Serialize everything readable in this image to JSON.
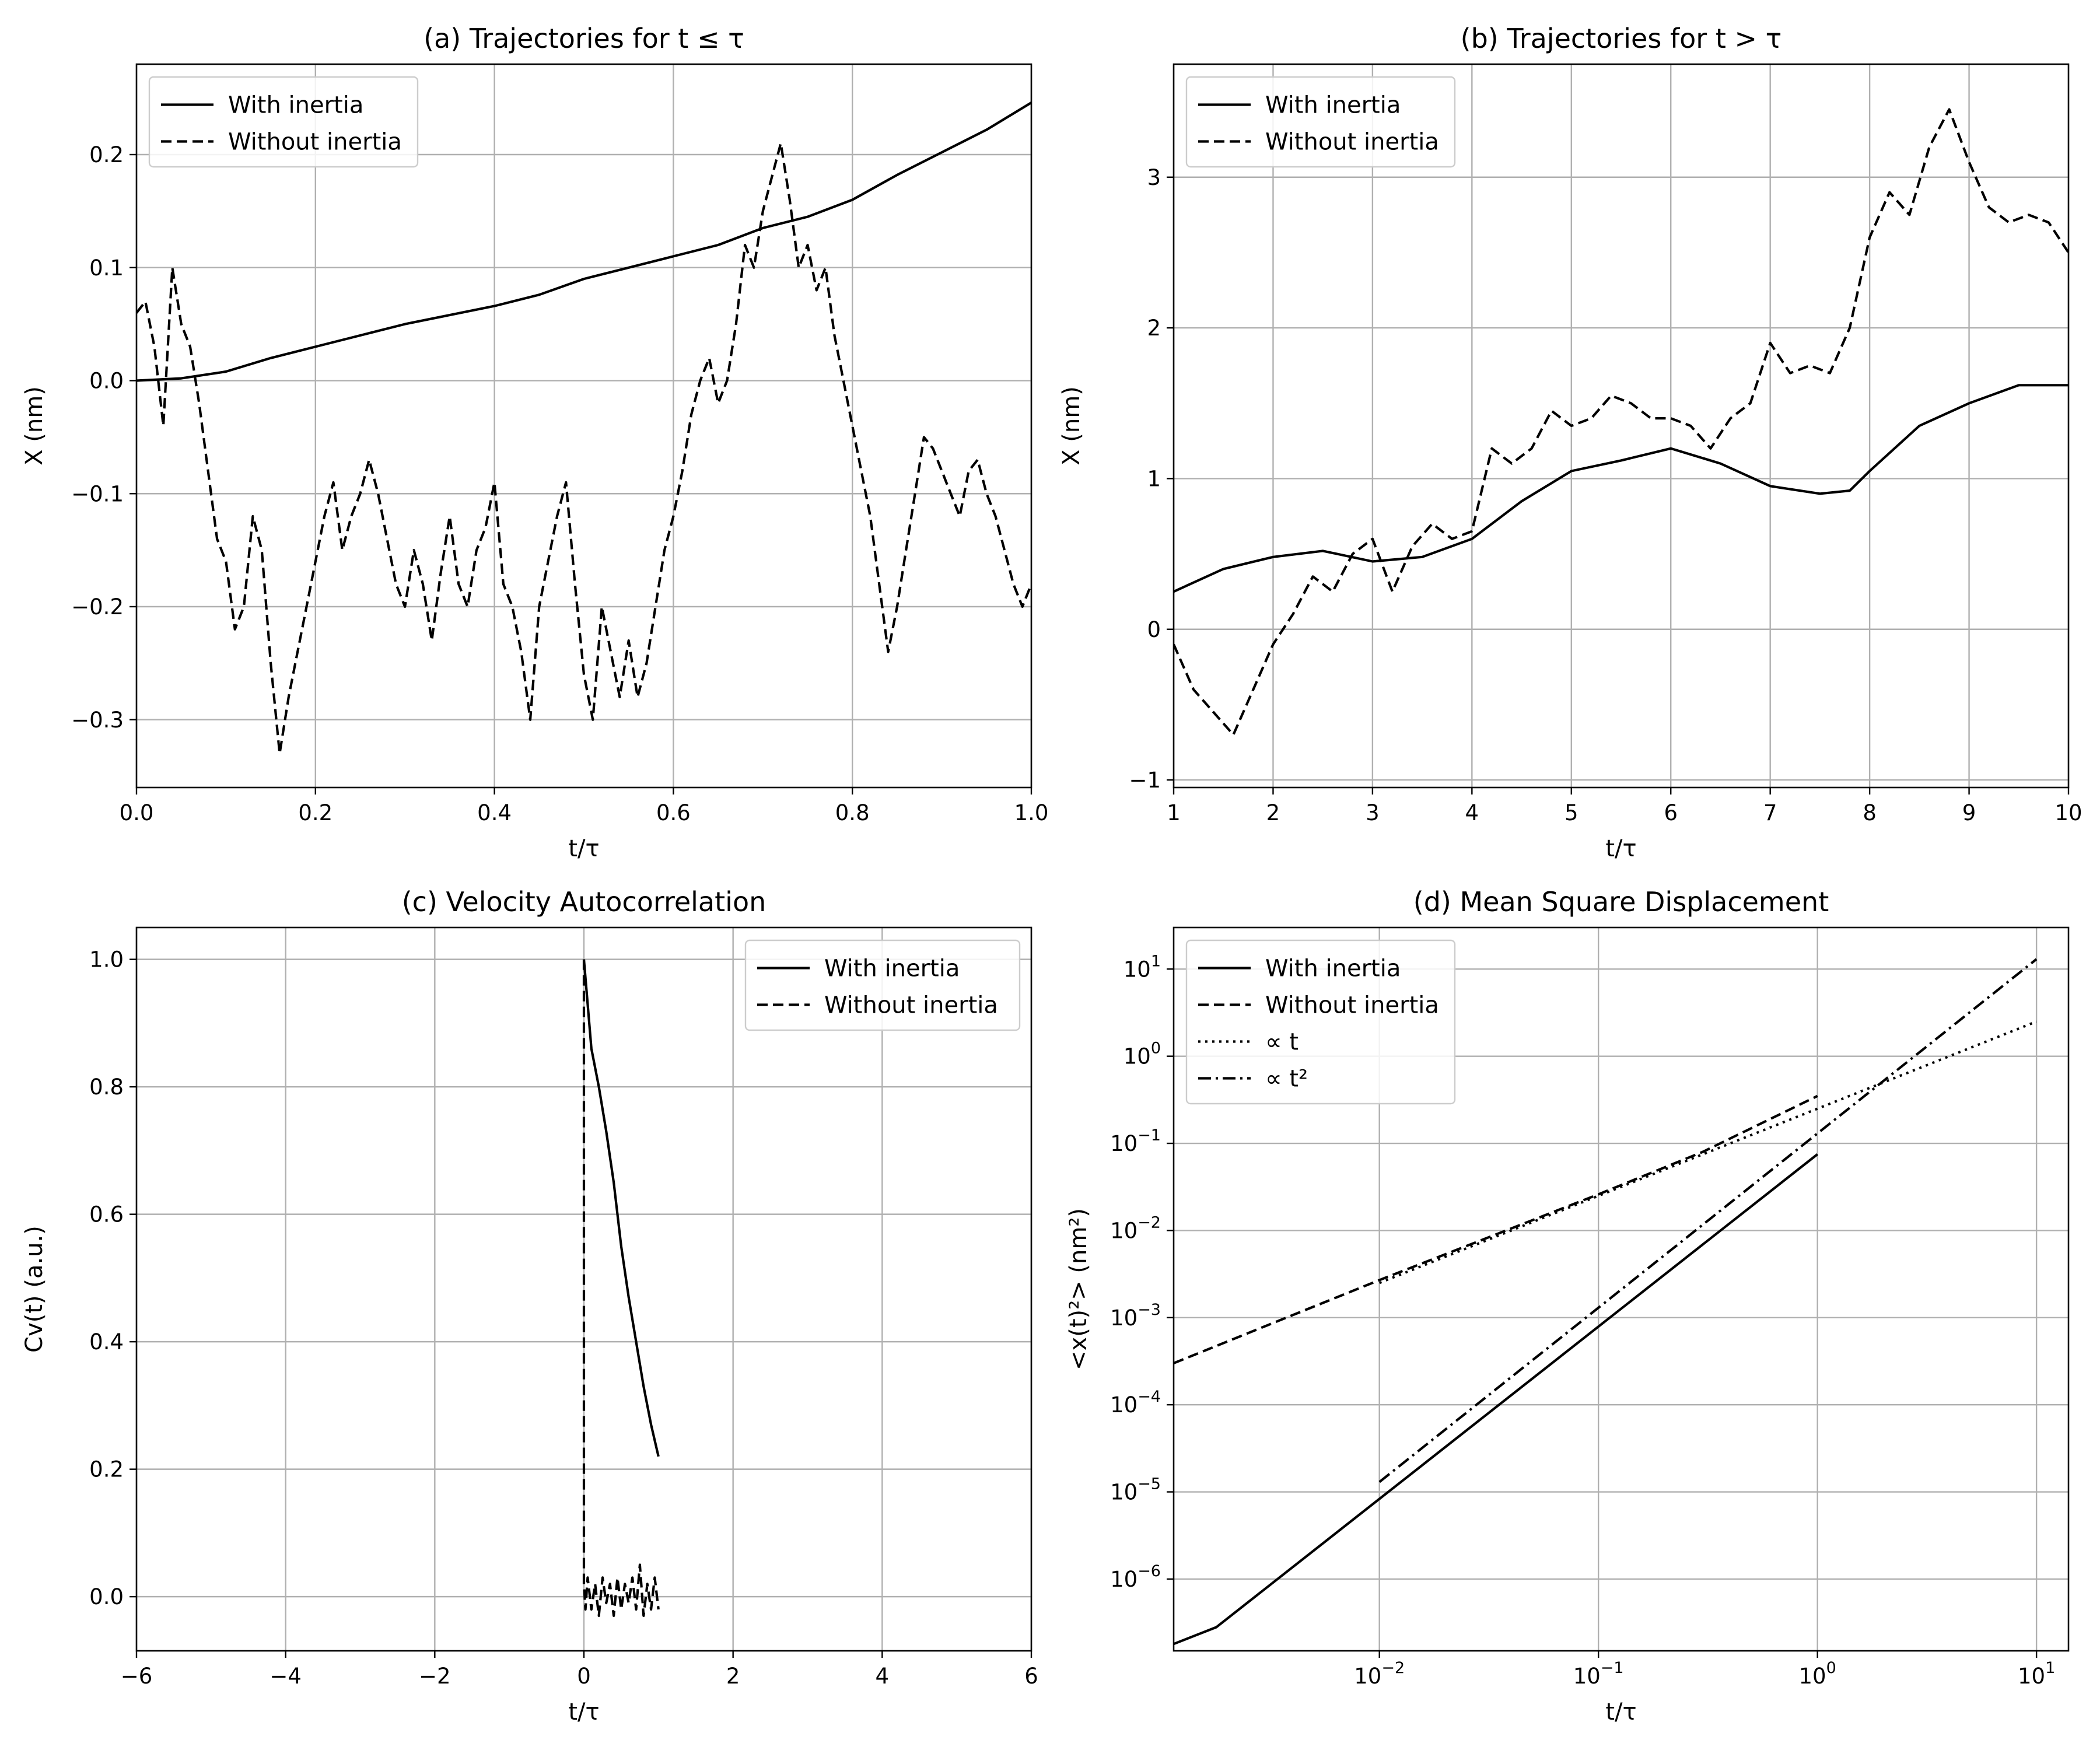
{
  "chart_data": [
    {
      "type": "line",
      "title": "(a) Trajectories for t ≤ τ",
      "xlabel": "t/τ",
      "ylabel": "X (nm)",
      "xlim": [
        0,
        1
      ],
      "ylim": [
        -0.36,
        0.28
      ],
      "xticks": [
        0,
        0.2,
        0.4,
        0.6,
        0.8,
        1.0
      ],
      "xtick_labels": [
        "0.0",
        "0.2",
        "0.4",
        "0.6",
        "0.8",
        "1.0"
      ],
      "yticks": [
        -0.3,
        -0.2,
        -0.1,
        0.0,
        0.1,
        0.2
      ],
      "ytick_labels": [
        "−0.3",
        "−0.2",
        "−0.1",
        "0.0",
        "0.1",
        "0.2"
      ],
      "grid": true,
      "legend": "top-left",
      "series": [
        {
          "name": "With inertia",
          "style": "solid",
          "x": [
            0,
            0.05,
            0.1,
            0.15,
            0.2,
            0.25,
            0.3,
            0.35,
            0.4,
            0.45,
            0.5,
            0.55,
            0.6,
            0.65,
            0.7,
            0.75,
            0.8,
            0.85,
            0.9,
            0.95,
            1.0
          ],
          "y": [
            0.0,
            0.002,
            0.008,
            0.02,
            0.03,
            0.04,
            0.05,
            0.058,
            0.066,
            0.076,
            0.09,
            0.1,
            0.11,
            0.12,
            0.135,
            0.145,
            0.16,
            0.182,
            0.202,
            0.222,
            0.246
          ]
        },
        {
          "name": "Without inertia",
          "style": "dashed",
          "x": [
            0,
            0.01,
            0.02,
            0.03,
            0.04,
            0.05,
            0.06,
            0.07,
            0.08,
            0.09,
            0.1,
            0.11,
            0.12,
            0.13,
            0.14,
            0.15,
            0.16,
            0.17,
            0.18,
            0.19,
            0.2,
            0.21,
            0.22,
            0.23,
            0.24,
            0.25,
            0.26,
            0.27,
            0.28,
            0.29,
            0.3,
            0.31,
            0.32,
            0.33,
            0.34,
            0.35,
            0.36,
            0.37,
            0.38,
            0.39,
            0.4,
            0.41,
            0.42,
            0.43,
            0.44,
            0.45,
            0.46,
            0.47,
            0.48,
            0.49,
            0.5,
            0.51,
            0.52,
            0.53,
            0.54,
            0.55,
            0.56,
            0.57,
            0.58,
            0.59,
            0.6,
            0.61,
            0.62,
            0.63,
            0.64,
            0.65,
            0.66,
            0.67,
            0.68,
            0.69,
            0.7,
            0.71,
            0.72,
            0.73,
            0.74,
            0.75,
            0.76,
            0.77,
            0.78,
            0.79,
            0.8,
            0.81,
            0.82,
            0.83,
            0.84,
            0.85,
            0.86,
            0.87,
            0.88,
            0.89,
            0.9,
            0.91,
            0.92,
            0.93,
            0.94,
            0.95,
            0.96,
            0.97,
            0.98,
            0.99,
            1.0
          ],
          "y": [
            0.06,
            0.07,
            0.03,
            -0.04,
            0.1,
            0.05,
            0.03,
            -0.02,
            -0.08,
            -0.14,
            -0.16,
            -0.22,
            -0.2,
            -0.12,
            -0.15,
            -0.25,
            -0.33,
            -0.28,
            -0.24,
            -0.2,
            -0.16,
            -0.12,
            -0.09,
            -0.15,
            -0.12,
            -0.1,
            -0.07,
            -0.1,
            -0.14,
            -0.18,
            -0.2,
            -0.15,
            -0.18,
            -0.23,
            -0.17,
            -0.12,
            -0.18,
            -0.2,
            -0.15,
            -0.13,
            -0.09,
            -0.18,
            -0.2,
            -0.24,
            -0.3,
            -0.2,
            -0.16,
            -0.12,
            -0.09,
            -0.18,
            -0.26,
            -0.3,
            -0.2,
            -0.24,
            -0.28,
            -0.23,
            -0.28,
            -0.25,
            -0.2,
            -0.15,
            -0.12,
            -0.08,
            -0.03,
            0.0,
            0.02,
            -0.02,
            0.0,
            0.05,
            0.12,
            0.1,
            0.15,
            0.18,
            0.21,
            0.16,
            0.1,
            0.12,
            0.08,
            0.1,
            0.04,
            0.0,
            -0.04,
            -0.08,
            -0.12,
            -0.18,
            -0.24,
            -0.2,
            -0.15,
            -0.1,
            -0.05,
            -0.06,
            -0.08,
            -0.1,
            -0.12,
            -0.08,
            -0.07,
            -0.1,
            -0.12,
            -0.15,
            -0.18,
            -0.2,
            -0.18
          ]
        }
      ]
    },
    {
      "type": "line",
      "title": "(b) Trajectories for t > τ",
      "xlabel": "t/τ",
      "ylabel": "X (nm)",
      "xlim": [
        1,
        10
      ],
      "ylim": [
        -1.05,
        3.75
      ],
      "xticks": [
        1,
        2,
        3,
        4,
        5,
        6,
        7,
        8,
        9,
        10
      ],
      "xtick_labels": [
        "1",
        "2",
        "3",
        "4",
        "5",
        "6",
        "7",
        "8",
        "9",
        "10"
      ],
      "yticks": [
        -1,
        0,
        1,
        2,
        3
      ],
      "ytick_labels": [
        "−1",
        "0",
        "1",
        "2",
        "3"
      ],
      "grid": true,
      "legend": "top-left",
      "series": [
        {
          "name": "With inertia",
          "style": "solid",
          "x": [
            1.0,
            1.5,
            2.0,
            2.5,
            3.0,
            3.5,
            4.0,
            4.5,
            5.0,
            5.5,
            6.0,
            6.5,
            7.0,
            7.5,
            7.8,
            8.0,
            8.5,
            9.0,
            9.5,
            10.0
          ],
          "y": [
            0.25,
            0.4,
            0.48,
            0.52,
            0.45,
            0.48,
            0.6,
            0.85,
            1.05,
            1.12,
            1.2,
            1.1,
            0.95,
            0.9,
            0.92,
            1.05,
            1.35,
            1.5,
            1.62,
            1.62
          ]
        },
        {
          "name": "Without inertia",
          "style": "dashed",
          "x": [
            1.0,
            1.2,
            1.4,
            1.6,
            1.8,
            2.0,
            2.2,
            2.4,
            2.6,
            2.8,
            3.0,
            3.2,
            3.4,
            3.6,
            3.8,
            4.0,
            4.2,
            4.4,
            4.6,
            4.8,
            5.0,
            5.2,
            5.4,
            5.6,
            5.8,
            6.0,
            6.2,
            6.4,
            6.6,
            6.8,
            7.0,
            7.2,
            7.4,
            7.6,
            7.8,
            8.0,
            8.2,
            8.4,
            8.6,
            8.8,
            9.0,
            9.2,
            9.4,
            9.6,
            9.8,
            10.0
          ],
          "y": [
            -0.1,
            -0.4,
            -0.55,
            -0.7,
            -0.4,
            -0.1,
            0.1,
            0.35,
            0.25,
            0.5,
            0.6,
            0.25,
            0.55,
            0.7,
            0.6,
            0.65,
            1.2,
            1.1,
            1.2,
            1.45,
            1.35,
            1.4,
            1.55,
            1.5,
            1.4,
            1.4,
            1.35,
            1.2,
            1.4,
            1.5,
            1.9,
            1.7,
            1.75,
            1.7,
            2.0,
            2.6,
            2.9,
            2.75,
            3.2,
            3.45,
            3.1,
            2.8,
            2.7,
            2.75,
            2.7,
            2.5
          ]
        }
      ]
    },
    {
      "type": "line",
      "title": "(c) Velocity Autocorrelation",
      "xlabel": "t/τ",
      "ylabel": "Cv(t) (a.u.)",
      "xlim": [
        -6,
        6
      ],
      "ylim": [
        -0.085,
        1.05
      ],
      "xticks": [
        -6,
        -4,
        -2,
        0,
        2,
        4,
        6
      ],
      "xtick_labels": [
        "−6",
        "−4",
        "−2",
        "0",
        "2",
        "4",
        "6"
      ],
      "yticks": [
        0.0,
        0.2,
        0.4,
        0.6,
        0.8,
        1.0
      ],
      "ytick_labels": [
        "0.0",
        "0.2",
        "0.4",
        "0.6",
        "0.8",
        "1.0"
      ],
      "grid": true,
      "legend": "top-right",
      "series": [
        {
          "name": "With inertia",
          "style": "solid",
          "x": [
            0.0,
            0.05,
            0.1,
            0.2,
            0.3,
            0.4,
            0.5,
            0.6,
            0.7,
            0.8,
            0.9,
            1.0
          ],
          "y": [
            1.0,
            0.93,
            0.86,
            0.8,
            0.73,
            0.65,
            0.55,
            0.47,
            0.4,
            0.33,
            0.27,
            0.22
          ]
        },
        {
          "name": "Without inertia",
          "style": "dashed",
          "x": [
            0.0,
            0.0,
            0.02,
            0.05,
            0.1,
            0.15,
            0.2,
            0.25,
            0.3,
            0.35,
            0.4,
            0.45,
            0.5,
            0.55,
            0.6,
            0.65,
            0.7,
            0.75,
            0.8,
            0.85,
            0.9,
            0.95,
            1.0
          ],
          "y": [
            1.0,
            0.02,
            -0.02,
            0.03,
            -0.02,
            0.02,
            -0.03,
            0.03,
            -0.01,
            0.02,
            -0.03,
            0.03,
            -0.02,
            0.02,
            -0.01,
            0.03,
            -0.02,
            0.05,
            -0.03,
            0.02,
            -0.02,
            0.03,
            -0.02
          ]
        }
      ]
    },
    {
      "type": "line",
      "title": "(d) Mean Square Displacement",
      "xlabel": "t/τ",
      "ylabel": "<x(t)²> (nm²)",
      "xscale": "log",
      "yscale": "log",
      "xlim": [
        0.00115,
        14
      ],
      "ylim": [
        1.5e-07,
        30
      ],
      "xticks": [
        0.01,
        0.1,
        1,
        10
      ],
      "xtick_labels": [
        [
          "10",
          "−2"
        ],
        [
          "10",
          "−1"
        ],
        [
          "10",
          "0"
        ],
        [
          "10",
          "1"
        ]
      ],
      "yticks": [
        1e-06,
        1e-05,
        0.0001,
        0.001,
        0.01,
        0.1,
        1,
        10
      ],
      "ytick_labels": [
        [
          "10",
          "−6"
        ],
        [
          "10",
          "−5"
        ],
        [
          "10",
          "−4"
        ],
        [
          "10",
          "−3"
        ],
        [
          "10",
          "−2"
        ],
        [
          "10",
          "−1"
        ],
        [
          "10",
          "0"
        ],
        [
          "10",
          "1"
        ]
      ],
      "grid": true,
      "legend": "top-left",
      "series": [
        {
          "name": "With inertia",
          "style": "solid",
          "x": [
            0.00115,
            0.0018,
            1.0
          ],
          "y": [
            1.8e-07,
            2.8e-07,
            0.075
          ]
        },
        {
          "name": "Without inertia",
          "style": "dashed",
          "x": [
            0.00115,
            0.01,
            0.1,
            0.3,
            1.0
          ],
          "y": [
            0.0003,
            0.0027,
            0.026,
            0.08,
            0.35
          ]
        },
        {
          "name": "∝ t",
          "style": "dotted",
          "x": [
            0.01,
            0.1,
            1.0,
            10.0
          ],
          "y": [
            0.0025,
            0.025,
            0.25,
            2.5
          ]
        },
        {
          "name": "∝ t²",
          "style": "dashdot",
          "x": [
            0.01,
            0.1,
            1.0,
            10.0
          ],
          "y": [
            1.3e-05,
            0.0013,
            0.13,
            13.0
          ]
        }
      ]
    }
  ]
}
